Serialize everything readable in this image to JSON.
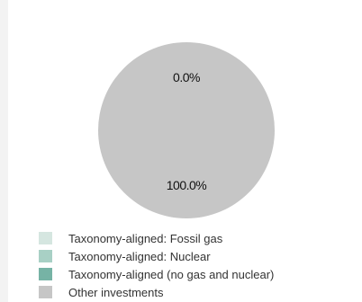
{
  "chart_data": {
    "type": "pie",
    "title": "",
    "slices": [
      {
        "name": "Taxonomy-aligned: Fossil gas",
        "value": 0.0,
        "color": "#d5e6e0"
      },
      {
        "name": "Taxonomy-aligned: Nuclear",
        "value": 0.0,
        "color": "#a8d0c5"
      },
      {
        "name": "Taxonomy-aligned (no gas and nuclear)",
        "value": 0.0,
        "color": "#76b3a5"
      },
      {
        "name": "Other investments",
        "value": 100.0,
        "color": "#c6c6c6"
      }
    ],
    "data_labels": [
      "0.0%",
      "100.0%"
    ],
    "legend_position": "bottom-left"
  }
}
